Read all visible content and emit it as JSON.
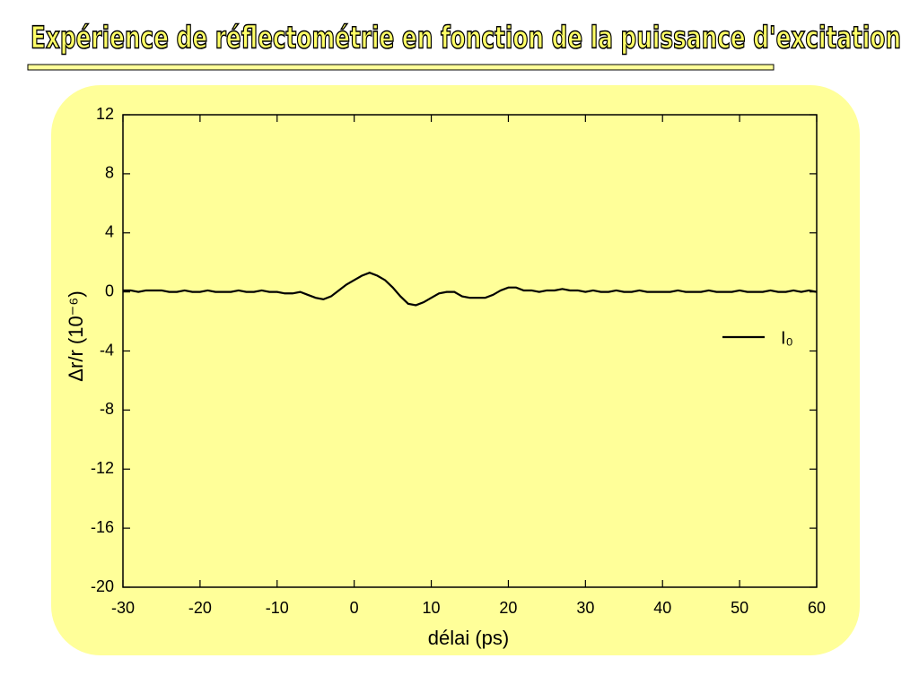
{
  "chart_data": {
    "type": "line",
    "title": "Expérience de réflectométrie en fonction de la puissance d'excitation",
    "x_label": "délai (ps)",
    "y_label": "Δr/r (10⁻⁶)",
    "x": [
      -30,
      -29,
      -28,
      -27,
      -26,
      -25,
      -24,
      -23,
      -22,
      -21,
      -20,
      -19,
      -18,
      -17,
      -16,
      -15,
      -14,
      -13,
      -12,
      -11,
      -10,
      -9,
      -8,
      -7,
      -6,
      -5,
      -4,
      -3,
      -2,
      -1,
      0,
      1,
      2,
      3,
      4,
      5,
      6,
      7,
      8,
      9,
      10,
      11,
      12,
      13,
      14,
      15,
      16,
      17,
      18,
      19,
      20,
      21,
      22,
      23,
      24,
      25,
      26,
      27,
      28,
      29,
      30,
      31,
      32,
      33,
      34,
      35,
      36,
      37,
      38,
      39,
      40,
      41,
      42,
      43,
      44,
      45,
      46,
      47,
      48,
      49,
      50,
      51,
      52,
      53,
      54,
      55,
      56,
      57,
      58,
      59,
      60
    ],
    "series": [
      {
        "name": "I₀",
        "color": "#000000",
        "values": [
          0.1,
          0.1,
          0.0,
          0.1,
          0.1,
          0.1,
          0.0,
          0.0,
          0.1,
          0.0,
          0.0,
          0.1,
          0.0,
          0.0,
          0.0,
          0.1,
          0.0,
          0.0,
          0.1,
          0.0,
          0.0,
          -0.1,
          -0.1,
          0.0,
          -0.2,
          -0.4,
          -0.5,
          -0.3,
          0.1,
          0.5,
          0.8,
          1.1,
          1.3,
          1.1,
          0.8,
          0.3,
          -0.3,
          -0.8,
          -0.9,
          -0.7,
          -0.4,
          -0.1,
          0.0,
          0.0,
          -0.3,
          -0.4,
          -0.4,
          -0.4,
          -0.2,
          0.1,
          0.3,
          0.3,
          0.1,
          0.1,
          0.0,
          0.1,
          0.1,
          0.2,
          0.1,
          0.1,
          0.0,
          0.1,
          0.0,
          0.0,
          0.1,
          0.0,
          0.0,
          0.1,
          0.0,
          0.0,
          0.0,
          0.0,
          0.1,
          0.0,
          0.0,
          0.0,
          0.1,
          0.0,
          0.0,
          0.0,
          0.1,
          0.0,
          0.0,
          0.0,
          0.1,
          0.0,
          0.0,
          0.1,
          0.0,
          0.1,
          0.0
        ]
      }
    ],
    "xlim": [
      -30,
      60
    ],
    "xticks": [
      -30,
      -20,
      -10,
      0,
      10,
      20,
      30,
      40,
      50,
      60
    ],
    "ylim": [
      -20,
      12
    ],
    "yticks": [
      -20,
      -16,
      -12,
      -8,
      -4,
      0,
      4,
      8,
      12
    ],
    "grid": false,
    "legend": "right",
    "background": "#ffff99"
  }
}
